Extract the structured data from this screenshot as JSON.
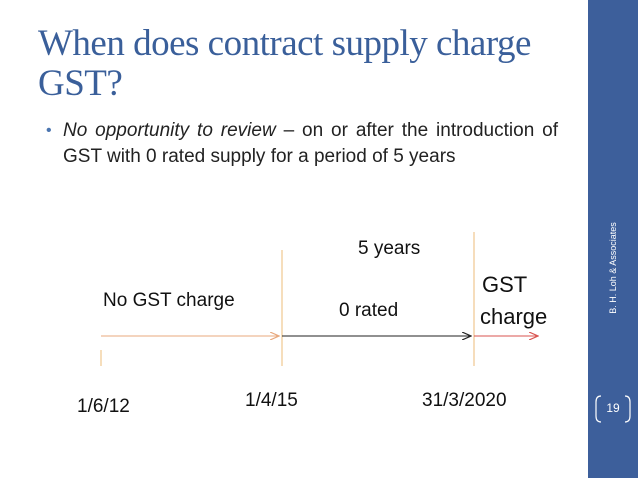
{
  "slide": {
    "title": "When does contract supply charge GST?",
    "bullet": {
      "italic_lead": "No opportunity to review",
      "rest": " – on or after the introduction of GST with 0 rated supply for a period of 5 years"
    },
    "timeline": {
      "period_label": "5 years",
      "left_segment_label": "No GST charge",
      "middle_segment_label": "0 rated",
      "right_segment_label_line1": "GST",
      "right_segment_label_line2": "charge",
      "dates": [
        "1/6/12",
        "1/4/15",
        "31/3/2020"
      ],
      "colors": {
        "left_arrow": "#e8a87c",
        "middle_arrow": "#222222",
        "right_arrow": "#d9534f",
        "divider": "#f3d2a6"
      }
    },
    "sidebar": {
      "credit": "B. H. Loh & Associates",
      "page_number": "19",
      "color": "#3d5f9b"
    }
  }
}
